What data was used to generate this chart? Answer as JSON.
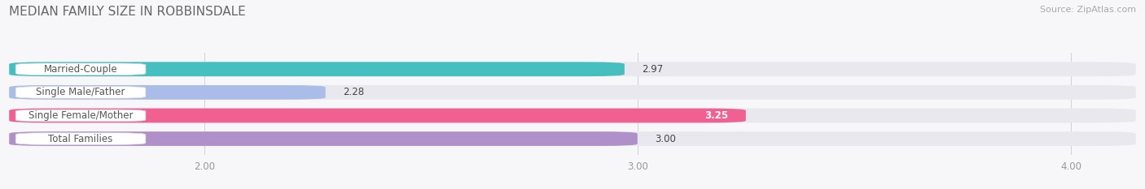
{
  "title": "MEDIAN FAMILY SIZE IN ROBBINSDALE",
  "source": "Source: ZipAtlas.com",
  "categories": [
    "Married-Couple",
    "Single Male/Father",
    "Single Female/Mother",
    "Total Families"
  ],
  "values": [
    2.97,
    2.28,
    3.25,
    3.0
  ],
  "bar_colors": [
    "#45bfbf",
    "#aabde8",
    "#f06090",
    "#b090c8"
  ],
  "bar_bg_color": "#e8e8ee",
  "xlim": [
    1.55,
    4.15
  ],
  "xticks": [
    2.0,
    3.0,
    4.0
  ],
  "xtick_labels": [
    "2.00",
    "3.00",
    "4.00"
  ],
  "background_color": "#f7f7fa",
  "title_fontsize": 11,
  "label_fontsize": 8.5,
  "value_fontsize": 8.5,
  "source_fontsize": 8,
  "bar_height": 0.62,
  "label_box_color": "#ffffff",
  "label_text_color": "#555555",
  "value_text_color": "#444444",
  "value_inside_color": "#ffffff"
}
